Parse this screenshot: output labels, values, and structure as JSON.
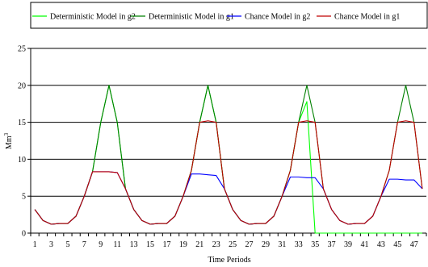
{
  "chart_data": {
    "type": "line",
    "title": "",
    "xlabel": "Time Periods",
    "ylabel": "Mm",
    "ylabel_superscript": "3",
    "xlim": [
      1,
      48
    ],
    "ylim": [
      0,
      25
    ],
    "yticks": [
      0,
      5,
      10,
      15,
      20,
      25
    ],
    "xtick_labels": [
      1,
      3,
      5,
      7,
      9,
      11,
      13,
      15,
      17,
      19,
      21,
      23,
      25,
      27,
      29,
      31,
      33,
      35,
      37,
      39,
      41,
      43,
      45,
      47
    ],
    "grid": "horizontal",
    "legend_position": "top",
    "x": [
      1,
      2,
      3,
      4,
      5,
      6,
      7,
      8,
      9,
      10,
      11,
      12,
      13,
      14,
      15,
      16,
      17,
      18,
      19,
      20,
      21,
      22,
      23,
      24,
      25,
      26,
      27,
      28,
      29,
      30,
      31,
      32,
      33,
      34,
      35,
      36,
      37,
      38,
      39,
      40,
      41,
      42,
      43,
      44,
      45,
      46,
      47,
      48
    ],
    "series": [
      {
        "name": "Deterministic Model in g2",
        "color": "#00ff00",
        "values": [
          3.2,
          1.7,
          1.2,
          1.3,
          1.3,
          2.3,
          5.0,
          8.3,
          15.0,
          20.0,
          15.0,
          6.0,
          3.2,
          1.7,
          1.2,
          1.3,
          1.3,
          2.3,
          5.0,
          8.5,
          15.0,
          20.0,
          15.0,
          6.0,
          3.2,
          1.7,
          1.2,
          1.3,
          1.3,
          2.3,
          5.0,
          8.5,
          15.0,
          17.8,
          0,
          0,
          0,
          0,
          0,
          0,
          0,
          0,
          0,
          0,
          0,
          0,
          0,
          0
        ]
      },
      {
        "name": "Deterministic Model in g1",
        "color": "#008000",
        "values": [
          3.2,
          1.7,
          1.2,
          1.3,
          1.3,
          2.3,
          5.0,
          8.3,
          15.0,
          20.0,
          15.0,
          6.0,
          3.2,
          1.7,
          1.2,
          1.3,
          1.3,
          2.3,
          5.0,
          8.5,
          15.0,
          20.0,
          15.0,
          6.0,
          3.2,
          1.7,
          1.2,
          1.3,
          1.3,
          2.3,
          5.0,
          8.5,
          15.0,
          20.0,
          15.0,
          6.0,
          3.2,
          1.7,
          1.2,
          1.3,
          1.3,
          2.3,
          5.0,
          8.5,
          15.0,
          20.0,
          15.0,
          6.0
        ]
      },
      {
        "name": "Chance Model in g2",
        "color": "#0000ff",
        "values": [
          3.2,
          1.7,
          1.2,
          1.3,
          1.3,
          2.3,
          5.0,
          8.3,
          8.3,
          8.3,
          8.2,
          6.0,
          3.2,
          1.7,
          1.2,
          1.3,
          1.3,
          2.3,
          5.0,
          8.0,
          8.0,
          7.9,
          7.8,
          6.0,
          3.2,
          1.7,
          1.2,
          1.3,
          1.3,
          2.3,
          5.0,
          7.6,
          7.6,
          7.5,
          7.5,
          6.0,
          3.2,
          1.7,
          1.2,
          1.3,
          1.3,
          2.3,
          5.0,
          7.3,
          7.3,
          7.2,
          7.2,
          6.0
        ]
      },
      {
        "name": "Chance Model in g1",
        "color": "#c00000",
        "values": [
          3.2,
          1.7,
          1.2,
          1.3,
          1.3,
          2.3,
          5.0,
          8.3,
          8.3,
          8.3,
          8.2,
          6.0,
          3.2,
          1.7,
          1.2,
          1.3,
          1.3,
          2.3,
          5.0,
          8.5,
          15.0,
          15.2,
          15.0,
          6.0,
          3.2,
          1.7,
          1.2,
          1.3,
          1.3,
          2.3,
          5.0,
          8.5,
          15.0,
          15.2,
          15.0,
          6.0,
          3.2,
          1.7,
          1.2,
          1.3,
          1.3,
          2.3,
          5.0,
          8.5,
          15.0,
          15.2,
          15.0,
          6.0
        ]
      }
    ]
  }
}
